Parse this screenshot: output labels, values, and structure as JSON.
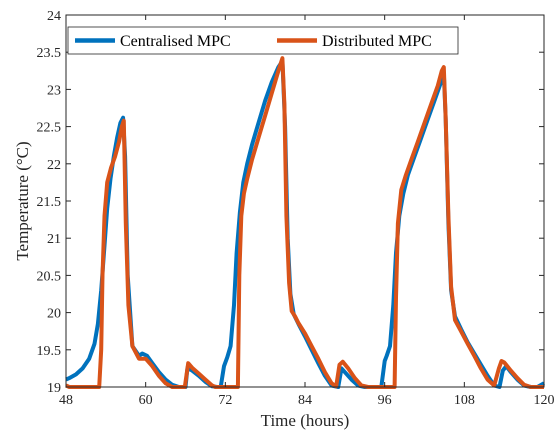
{
  "chart_data": {
    "type": "line",
    "title": "",
    "xlabel": "Time (hours)",
    "ylabel": "Temperature (°C)",
    "xlim": [
      48,
      120
    ],
    "ylim": [
      19,
      24
    ],
    "xticks": [
      48,
      60,
      72,
      84,
      96,
      108,
      120
    ],
    "xtick_labels": [
      "48",
      "60",
      "72",
      "84",
      "96",
      "108",
      "120"
    ],
    "yticks": [
      19,
      19.5,
      20,
      20.5,
      21,
      21.5,
      22,
      22.5,
      23,
      23.5,
      24
    ],
    "ytick_labels": [
      "19",
      "19.5",
      "20",
      "20.5",
      "21",
      "21.5",
      "22",
      "22.5",
      "23",
      "23.5",
      "24"
    ],
    "grid": false,
    "legend_position": "top-left",
    "series": [
      {
        "name": "Centralised MPC",
        "color": "#0072BD",
        "x": [
          48,
          48.5,
          49.5,
          50.5,
          51.5,
          52.3,
          52.8,
          53.3,
          53.8,
          54.2,
          54.7,
          55.2,
          55.7,
          56.2,
          56.6,
          56.9,
          57.3,
          58,
          59,
          59.5,
          60.2,
          61,
          62,
          63,
          64,
          65,
          66,
          66.3,
          67,
          68,
          69,
          70,
          70.8,
          71.3,
          71.8,
          72.3,
          72.8,
          73.3,
          73.7,
          74.2,
          74.7,
          75.3,
          76,
          77,
          78,
          79,
          80,
          80.6,
          81,
          81.4,
          81.8,
          82.3,
          83,
          84,
          85,
          86,
          87,
          88,
          89,
          89.5,
          90,
          91,
          92,
          93,
          94,
          94.5,
          95,
          95.5,
          96,
          96.3,
          96.8,
          97.3,
          97.7,
          98.2,
          98.8,
          99.5,
          100.5,
          101.5,
          102.5,
          103.5,
          104.5,
          104.9,
          105.2,
          105.6,
          106,
          106.6,
          107.5,
          108.5,
          109.5,
          110.5,
          111.5,
          112.5,
          113.3,
          113.8,
          114.3,
          115,
          116,
          117,
          118,
          119,
          120
        ],
        "y": [
          19.1,
          19.12,
          19.17,
          19.25,
          19.38,
          19.58,
          19.85,
          20.3,
          20.9,
          21.4,
          21.8,
          22.1,
          22.35,
          22.55,
          22.62,
          22.1,
          20.5,
          19.55,
          19.42,
          19.45,
          19.42,
          19.32,
          19.2,
          19.1,
          19.03,
          19,
          19,
          19.26,
          19.22,
          19.15,
          19.07,
          19.01,
          19,
          19,
          19.28,
          19.4,
          19.55,
          20.1,
          20.8,
          21.35,
          21.75,
          22,
          22.25,
          22.55,
          22.85,
          23.1,
          23.3,
          23.38,
          22.5,
          21,
          20.25,
          19.98,
          19.85,
          19.68,
          19.5,
          19.32,
          19.15,
          19.02,
          19,
          19.25,
          19.2,
          19.1,
          19.02,
          19,
          19,
          19,
          19,
          19,
          19.35,
          19.42,
          19.55,
          20.1,
          20.8,
          21.3,
          21.6,
          21.85,
          22.1,
          22.35,
          22.6,
          22.85,
          23.1,
          23.22,
          22.6,
          21.2,
          20.3,
          19.95,
          19.78,
          19.6,
          19.45,
          19.3,
          19.15,
          19.02,
          19,
          19.22,
          19.28,
          19.2,
          19.1,
          19.02,
          19,
          19,
          19.05
        ]
      },
      {
        "name": "Distributed MPC",
        "color": "#D95319",
        "x": [
          48,
          48.5,
          49.5,
          50.5,
          51.5,
          52.5,
          53,
          53.3,
          53.5,
          53.8,
          54.2,
          54.8,
          55.4,
          56,
          56.4,
          56.7,
          57,
          57.4,
          58,
          59,
          59.5,
          60,
          61,
          62,
          63,
          64,
          65,
          65.9,
          66.4,
          67,
          68,
          69,
          70,
          70.5,
          71,
          72,
          73,
          73.5,
          73.9,
          74.1,
          74.4,
          74.8,
          75.3,
          76,
          77,
          78,
          79,
          80,
          80.6,
          80.9,
          81.2,
          81.6,
          82,
          82.5,
          83,
          84,
          85,
          86,
          87,
          88,
          88.7,
          89.2,
          89.7,
          90.5,
          91.5,
          92.5,
          93.5,
          94.5,
          95.5,
          96.5,
          97.2,
          97.5,
          97.7,
          98,
          98.5,
          99.2,
          100,
          101,
          102,
          103,
          104,
          104.6,
          104.9,
          105.2,
          105.6,
          106,
          106.6,
          107.5,
          108.5,
          109.5,
          110.5,
          111.5,
          112.5,
          113.2,
          113.6,
          114,
          115,
          116,
          117,
          118,
          119,
          120
        ],
        "y": [
          19.02,
          19,
          19,
          19,
          19,
          19,
          19,
          19.5,
          20.5,
          21.3,
          21.75,
          21.95,
          22.1,
          22.3,
          22.5,
          22.58,
          21.2,
          20.1,
          19.55,
          19.38,
          19.38,
          19.38,
          19.28,
          19.15,
          19.05,
          19,
          19,
          19,
          19.32,
          19.26,
          19.18,
          19.1,
          19.02,
          19,
          19,
          19,
          19,
          19,
          19,
          20.5,
          21.3,
          21.6,
          21.8,
          22.05,
          22.35,
          22.65,
          22.95,
          23.25,
          23.42,
          22.8,
          21.3,
          20.4,
          20.02,
          19.95,
          19.86,
          19.72,
          19.55,
          19.38,
          19.2,
          19.05,
          19.01,
          19.3,
          19.34,
          19.25,
          19.12,
          19.02,
          19,
          19,
          19,
          19,
          19,
          19,
          20.2,
          21.2,
          21.65,
          21.85,
          22.05,
          22.3,
          22.55,
          22.8,
          23.05,
          23.25,
          23.3,
          22.6,
          21.3,
          20.35,
          19.9,
          19.75,
          19.58,
          19.42,
          19.25,
          19.1,
          19.02,
          19.25,
          19.35,
          19.33,
          19.22,
          19.12,
          19.03,
          19,
          19,
          19
        ]
      }
    ]
  }
}
